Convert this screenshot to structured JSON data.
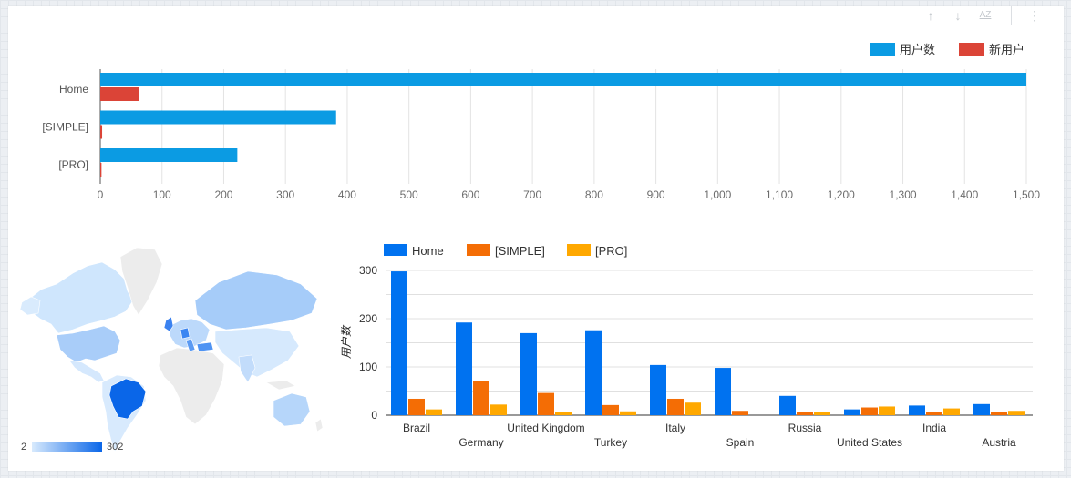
{
  "toolbar": {
    "sort_asc_icon": "arrow-up-icon",
    "sort_desc_icon": "arrow-down-icon",
    "sort_az_label": "AZ",
    "more_icon": "more-vertical-icon"
  },
  "colors": {
    "users": "#0b9be3",
    "new_users": "#db4437",
    "home": "#0072f0",
    "simple": "#f46d05",
    "pro": "#ffa800",
    "map_low": "#cfe6fd",
    "map_high": "#0a66e8",
    "map_land": "#ececec"
  },
  "map": {
    "legend_min": "2",
    "legend_max": "302"
  },
  "chart_data": [
    {
      "type": "bar",
      "orientation": "horizontal",
      "categories": [
        "Home",
        "[SIMPLE]",
        "[PRO]"
      ],
      "series": [
        {
          "name": "用户数",
          "values": [
            1500,
            382,
            222
          ]
        },
        {
          "name": "新用户",
          "values": [
            62,
            3,
            2
          ]
        }
      ],
      "xlim": [
        0,
        1500
      ],
      "xticks": [
        "0",
        "100",
        "200",
        "300",
        "400",
        "500",
        "600",
        "700",
        "800",
        "900",
        "1,000",
        "1,100",
        "1,200",
        "1,300",
        "1,400",
        "1,500"
      ],
      "legend": "top-right",
      "grid": true
    },
    {
      "type": "bar",
      "categories": [
        "Brazil",
        "Germany",
        "United Kingdom",
        "Turkey",
        "Italy",
        "Spain",
        "Russia",
        "United States",
        "India",
        "Austria"
      ],
      "series": [
        {
          "name": "Home",
          "values": [
            298,
            192,
            170,
            176,
            104,
            98,
            40,
            12,
            20,
            23
          ]
        },
        {
          "name": "[SIMPLE]",
          "values": [
            34,
            71,
            46,
            21,
            34,
            9,
            7,
            16,
            7,
            7
          ]
        },
        {
          "name": "[PRO]",
          "values": [
            12,
            22,
            7,
            8,
            26,
            0,
            6,
            18,
            14,
            9
          ]
        }
      ],
      "ylabel": "用户数",
      "ylim": [
        0,
        300
      ],
      "yticks": [
        "0",
        "100",
        "200",
        "300"
      ],
      "legend": "top-left",
      "grid": true
    }
  ]
}
